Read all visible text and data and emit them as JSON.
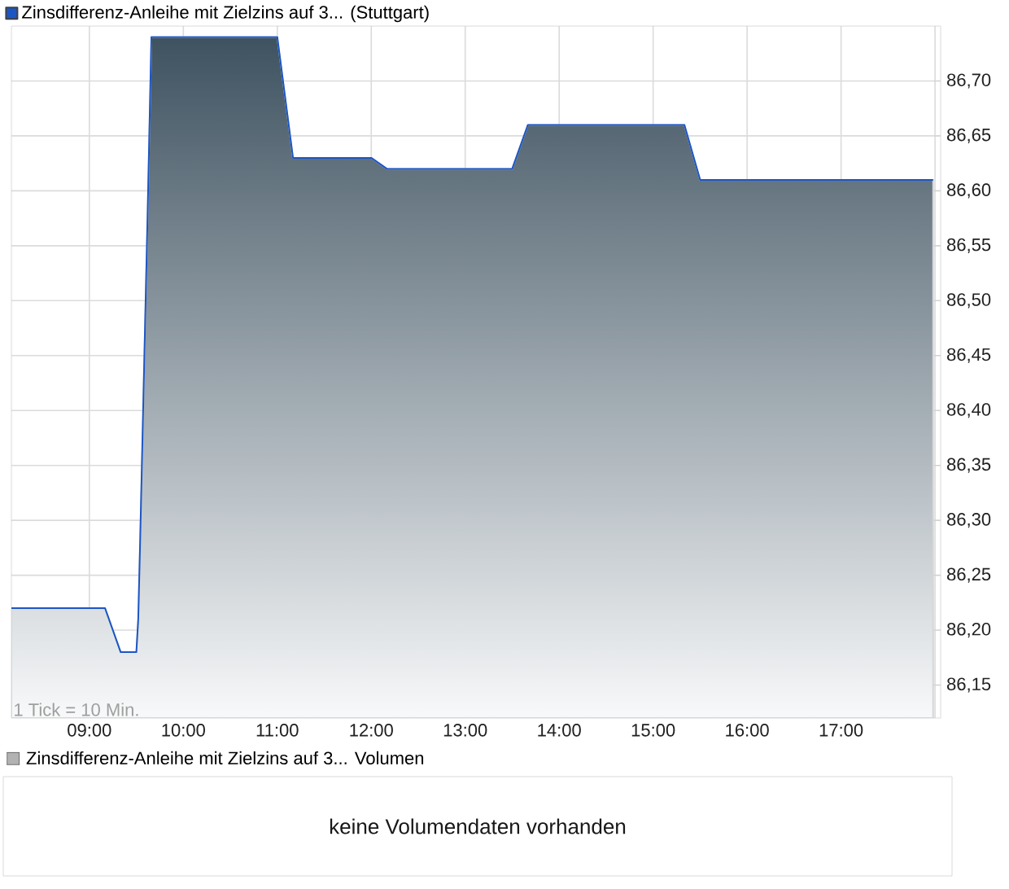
{
  "chart_data": [
    {
      "type": "area",
      "series": [
        {
          "name": "Zinsdifferenz-Anleihe mit Zielzins auf 3... (Stuttgart)",
          "color": "#1c56c4",
          "x": [
            8.17,
            9.167,
            9.333,
            9.5,
            9.52,
            9.54,
            9.62,
            9.66,
            11.0,
            11.167,
            12.0,
            12.167,
            13.5,
            13.667,
            15.333,
            15.5,
            17.98
          ],
          "values": [
            86.22,
            86.22,
            86.18,
            86.18,
            86.21,
            86.28,
            86.58,
            86.74,
            86.74,
            86.63,
            86.63,
            86.62,
            86.62,
            86.66,
            86.66,
            86.61,
            86.61
          ]
        }
      ],
      "xlim": [
        8.17,
        18.06
      ],
      "ylim": [
        86.12,
        86.75
      ],
      "xticks": [
        {
          "value": 9,
          "label": "09:00"
        },
        {
          "value": 10,
          "label": "10:00"
        },
        {
          "value": 11,
          "label": "11:00"
        },
        {
          "value": 12,
          "label": "12:00"
        },
        {
          "value": 13,
          "label": "13:00"
        },
        {
          "value": 14,
          "label": "14:00"
        },
        {
          "value": 15,
          "label": "15:00"
        },
        {
          "value": 16,
          "label": "16:00"
        },
        {
          "value": 17,
          "label": "17:00"
        },
        {
          "value": 18,
          "label": null
        }
      ],
      "yticks": [
        {
          "value": 86.15,
          "label": "86,15"
        },
        {
          "value": 86.2,
          "label": "86,20"
        },
        {
          "value": 86.25,
          "label": "86,25"
        },
        {
          "value": 86.3,
          "label": "86,30"
        },
        {
          "value": 86.35,
          "label": "86,35"
        },
        {
          "value": 86.4,
          "label": "86,40"
        },
        {
          "value": 86.45,
          "label": "86,45"
        },
        {
          "value": 86.5,
          "label": "86,50"
        },
        {
          "value": 86.55,
          "label": "86,55"
        },
        {
          "value": 86.6,
          "label": "86,60"
        },
        {
          "value": 86.65,
          "label": "86,65"
        },
        {
          "value": 86.7,
          "label": "86,70"
        }
      ],
      "grid": true,
      "legend": "top left",
      "annotations": [
        "1 Tick = 10 Min."
      ]
    },
    {
      "type": "other",
      "title": "Zinsdifferenz-Anleihe mit Zielzins auf 3... Volumen",
      "annotations": [
        "keine Volumendaten vorhanden"
      ]
    }
  ]
}
